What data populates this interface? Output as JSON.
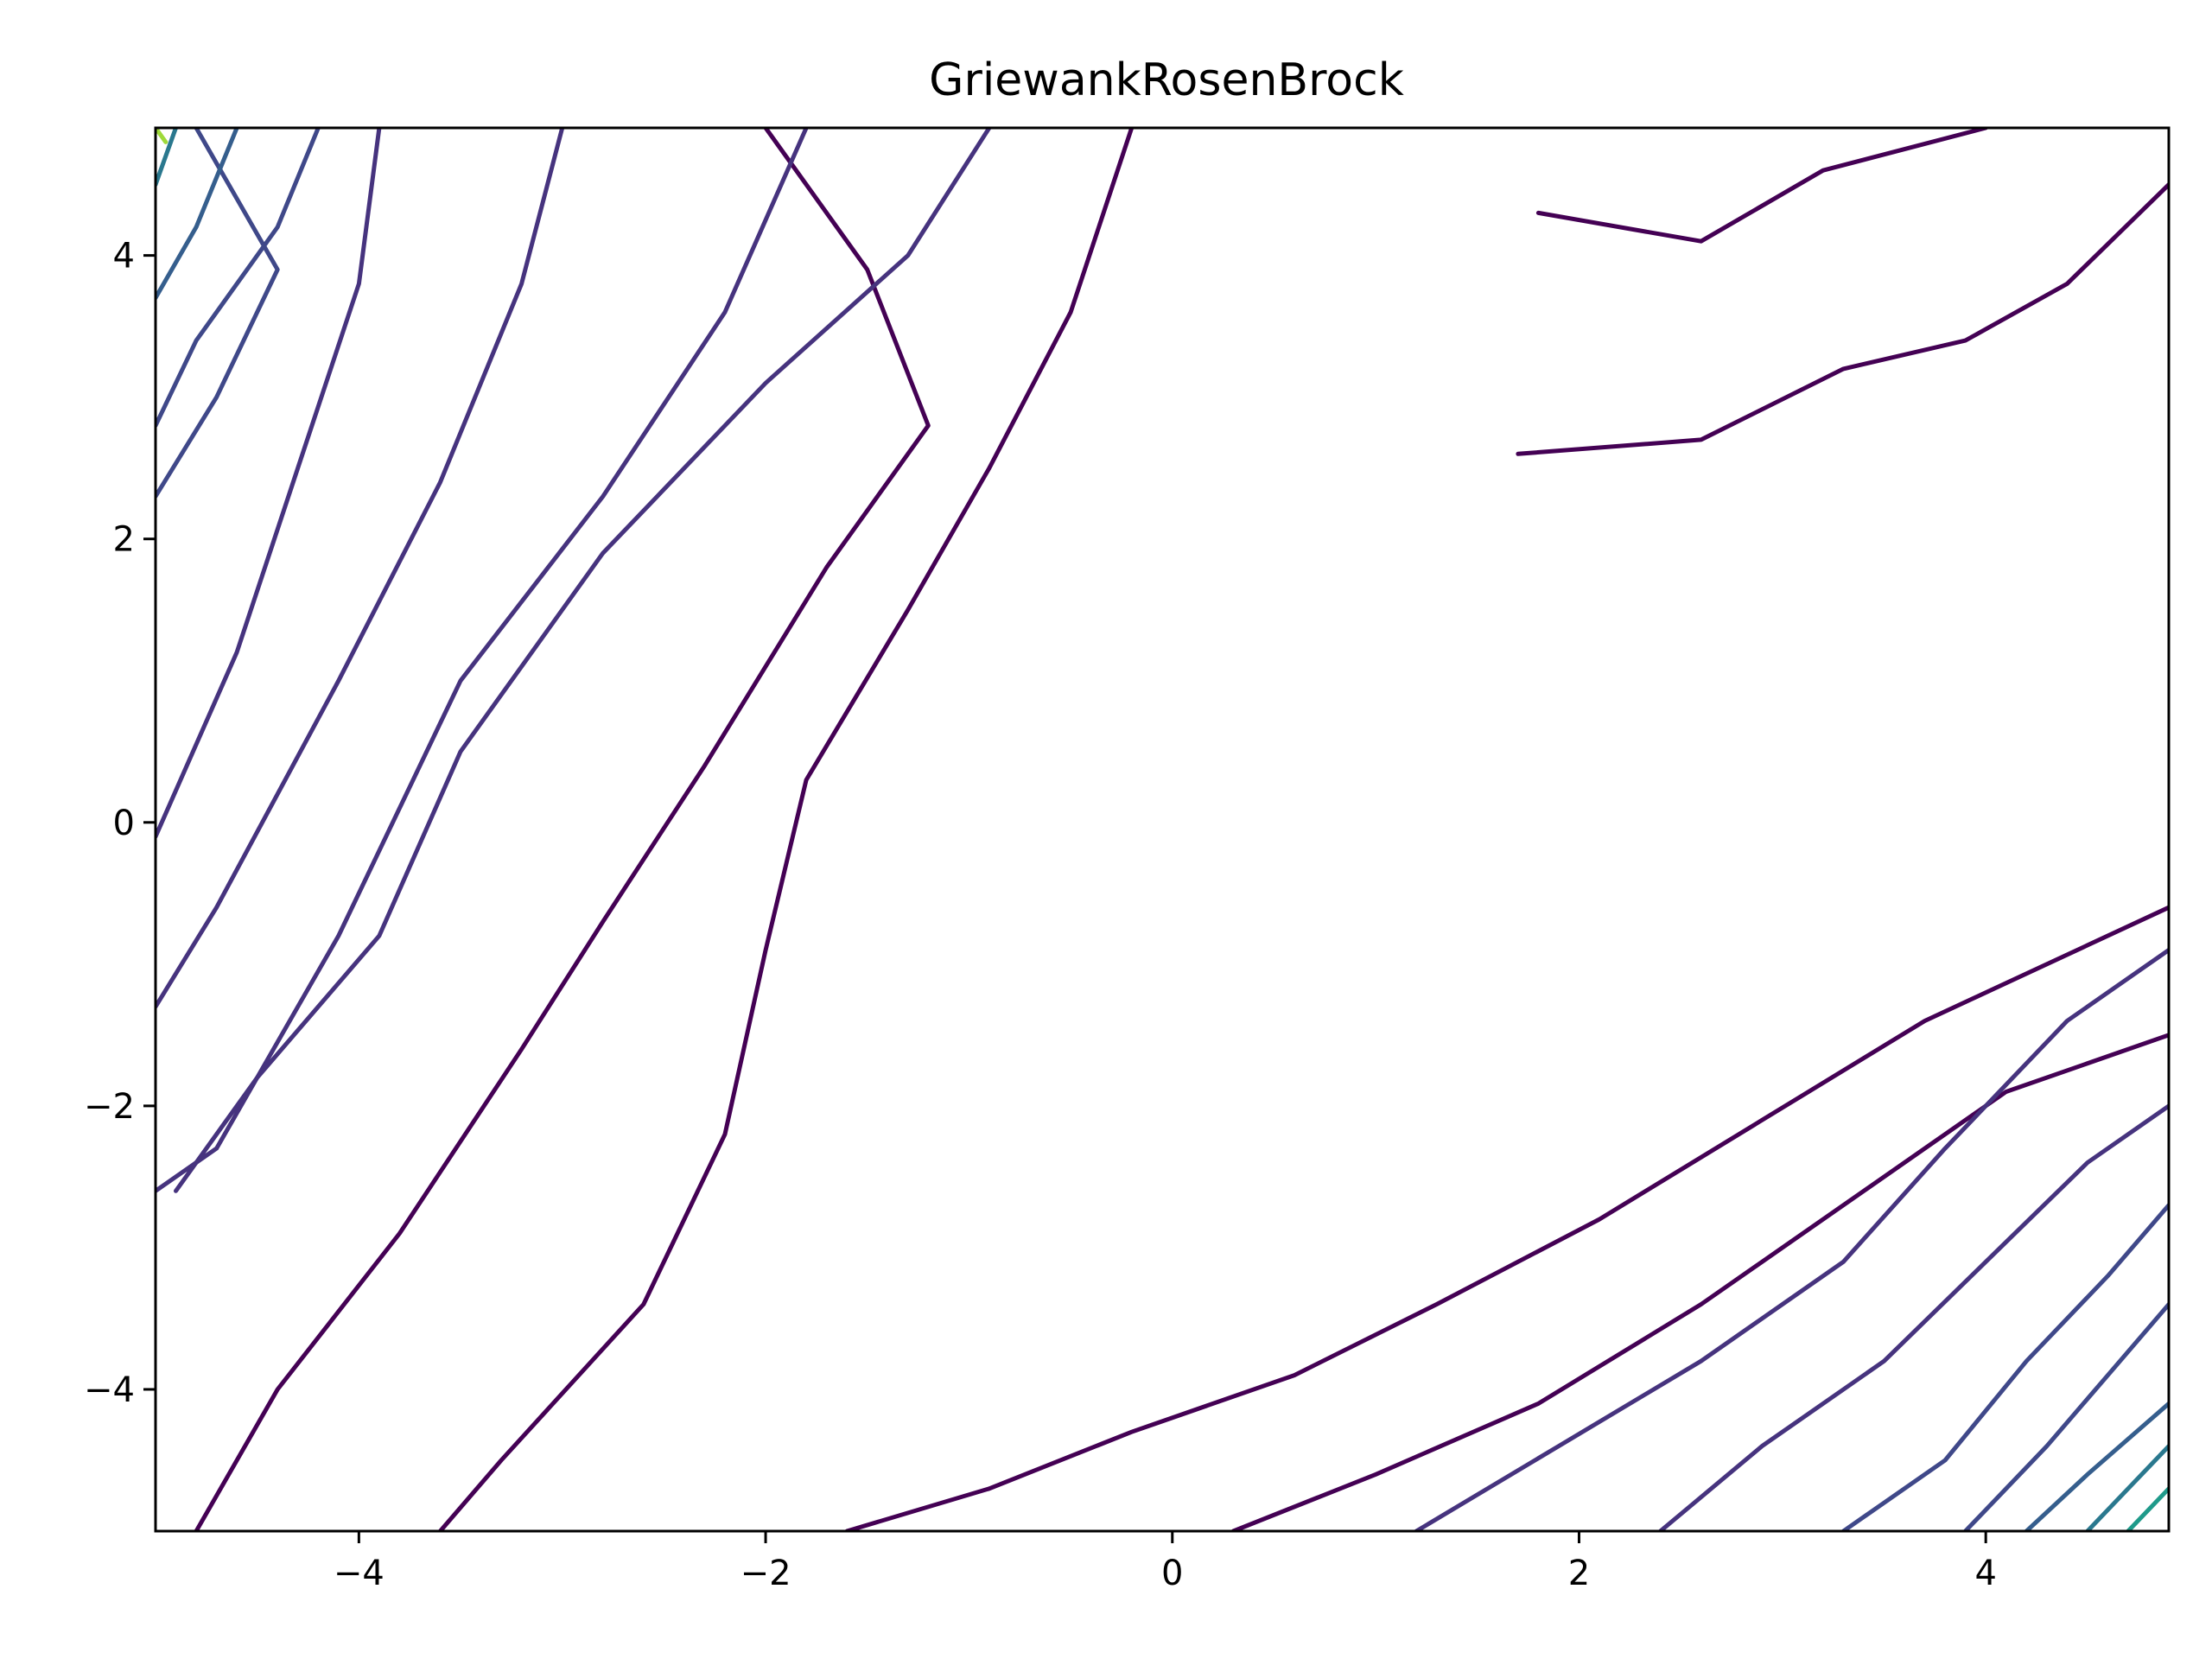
{
  "chart_data": {
    "type": "contour",
    "title": "GriewankRosenBrock",
    "xlabel": "",
    "ylabel": "",
    "xlim": [
      -5,
      4.9
    ],
    "ylim": [
      -5,
      4.9
    ],
    "xticks": [
      -4,
      -2,
      0,
      2,
      4
    ],
    "yticks": [
      -4,
      -2,
      0,
      2,
      4
    ],
    "xtick_labels": [
      "−4",
      "−2",
      "0",
      "2",
      "4"
    ],
    "ytick_labels": [
      "−4",
      "−2",
      "0",
      "2",
      "4"
    ],
    "colormap": "viridis",
    "grid": false,
    "legend": "none",
    "levels": [
      {
        "level": 1,
        "color": "#440154",
        "lines": [
          [
            [
              -2.0,
              4.9
            ],
            [
              -1.5,
              3.9
            ],
            [
              -1.2,
              2.8
            ],
            [
              -1.7,
              1.8
            ],
            [
              -2.3,
              0.4
            ],
            [
              -2.8,
              -0.7
            ],
            [
              -3.2,
              -1.6
            ],
            [
              -3.8,
              -2.9
            ],
            [
              -4.4,
              -4.0
            ],
            [
              -4.8,
              -5.0
            ]
          ],
          [
            [
              -0.2,
              4.9
            ],
            [
              -0.5,
              3.6
            ],
            [
              -0.9,
              2.5
            ],
            [
              -1.3,
              1.5
            ],
            [
              -1.8,
              0.3
            ],
            [
              -2.0,
              -0.9
            ],
            [
              -2.2,
              -2.2
            ],
            [
              -2.6,
              -3.4
            ],
            [
              -3.3,
              -4.5
            ],
            [
              -3.6,
              -5.0
            ]
          ],
          [
            [
              -1.6,
              -5.0
            ],
            [
              -0.9,
              -4.7
            ],
            [
              -0.2,
              -4.3
            ],
            [
              0.6,
              -3.9
            ],
            [
              1.3,
              -3.4
            ],
            [
              2.1,
              -2.8
            ],
            [
              2.9,
              -2.1
            ],
            [
              3.7,
              -1.4
            ],
            [
              4.9,
              -0.6
            ]
          ],
          [
            [
              0.3,
              -5.0
            ],
            [
              1.0,
              -4.6
            ],
            [
              1.8,
              -4.1
            ],
            [
              2.6,
              -3.4
            ],
            [
              3.4,
              -2.6
            ],
            [
              4.1,
              -1.9
            ],
            [
              4.9,
              -1.5
            ]
          ],
          [
            [
              1.7,
              2.6
            ],
            [
              2.6,
              2.7
            ],
            [
              3.3,
              3.2
            ],
            [
              3.9,
              3.4
            ],
            [
              4.4,
              3.8
            ],
            [
              4.9,
              4.5
            ]
          ],
          [
            [
              1.8,
              4.3
            ],
            [
              2.6,
              4.1
            ],
            [
              3.2,
              4.6
            ],
            [
              4.0,
              4.9
            ]
          ]
        ]
      },
      {
        "level": 2,
        "color": "#46337e",
        "lines": [
          [
            [
              -3.9,
              4.9
            ],
            [
              -4.0,
              3.8
            ],
            [
              -4.3,
              2.5
            ],
            [
              -4.6,
              1.2
            ],
            [
              -5.0,
              -0.1
            ]
          ],
          [
            [
              -3.0,
              4.9
            ],
            [
              -3.2,
              3.8
            ],
            [
              -3.6,
              2.4
            ],
            [
              -4.1,
              1.0
            ],
            [
              -4.7,
              -0.6
            ],
            [
              -5.0,
              -1.3
            ]
          ],
          [
            [
              -1.8,
              4.9
            ],
            [
              -2.2,
              3.6
            ],
            [
              -2.8,
              2.3
            ],
            [
              -3.5,
              1.0
            ],
            [
              -4.1,
              -0.8
            ],
            [
              -4.7,
              -2.3
            ],
            [
              -5.0,
              -2.6
            ]
          ],
          [
            [
              -0.9,
              4.9
            ],
            [
              -1.3,
              4.0
            ],
            [
              -2.0,
              3.1
            ],
            [
              -2.8,
              1.9
            ],
            [
              -3.5,
              0.5
            ],
            [
              -3.9,
              -0.8
            ],
            [
              -4.5,
              -1.8
            ],
            [
              -4.9,
              -2.6
            ]
          ],
          [
            [
              1.2,
              -5.0
            ],
            [
              1.9,
              -4.4
            ],
            [
              2.6,
              -3.8
            ],
            [
              3.3,
              -3.1
            ],
            [
              3.8,
              -2.3
            ],
            [
              4.4,
              -1.4
            ],
            [
              4.9,
              -0.9
            ]
          ],
          [
            [
              2.4,
              -5.0
            ],
            [
              2.9,
              -4.4
            ],
            [
              3.5,
              -3.8
            ],
            [
              4.0,
              -3.1
            ],
            [
              4.5,
              -2.4
            ],
            [
              4.9,
              -2.0
            ]
          ]
        ]
      },
      {
        "level": 3,
        "color": "#3f4889",
        "lines": [
          [
            [
              -4.8,
              4.9
            ],
            [
              -4.4,
              3.9
            ],
            [
              -4.7,
              3.0
            ],
            [
              -5.0,
              2.3
            ]
          ],
          [
            [
              -4.2,
              4.9
            ],
            [
              -4.4,
              4.2
            ],
            [
              -4.8,
              3.4
            ],
            [
              -5.0,
              2.8
            ]
          ],
          [
            [
              3.3,
              -5.0
            ],
            [
              3.8,
              -4.5
            ],
            [
              4.2,
              -3.8
            ],
            [
              4.6,
              -3.2
            ],
            [
              4.9,
              -2.7
            ]
          ],
          [
            [
              3.9,
              -5.0
            ],
            [
              4.3,
              -4.4
            ],
            [
              4.6,
              -3.9
            ],
            [
              4.9,
              -3.4
            ]
          ]
        ]
      },
      {
        "level": 4,
        "color": "#355e8d",
        "lines": [
          [
            [
              -4.6,
              4.9
            ],
            [
              -4.8,
              4.2
            ],
            [
              -5.0,
              3.7
            ]
          ],
          [
            [
              4.2,
              -5.0
            ],
            [
              4.5,
              -4.6
            ],
            [
              4.9,
              -4.1
            ]
          ]
        ]
      },
      {
        "level": 5,
        "color": "#2a788e",
        "lines": [
          [
            [
              -4.9,
              4.9
            ],
            [
              -5.0,
              4.5
            ]
          ],
          [
            [
              4.5,
              -5.0
            ],
            [
              4.7,
              -4.7
            ],
            [
              4.9,
              -4.4
            ]
          ]
        ]
      },
      {
        "level": 6,
        "color": "#1f9a8a",
        "lines": [
          [
            [
              4.7,
              -5.0
            ],
            [
              4.9,
              -4.7
            ]
          ]
        ]
      },
      {
        "level": 7,
        "color": "#9fda3a",
        "lines": [
          [
            [
              -5.0,
              4.9
            ],
            [
              -4.95,
              4.8
            ]
          ]
        ]
      }
    ]
  }
}
